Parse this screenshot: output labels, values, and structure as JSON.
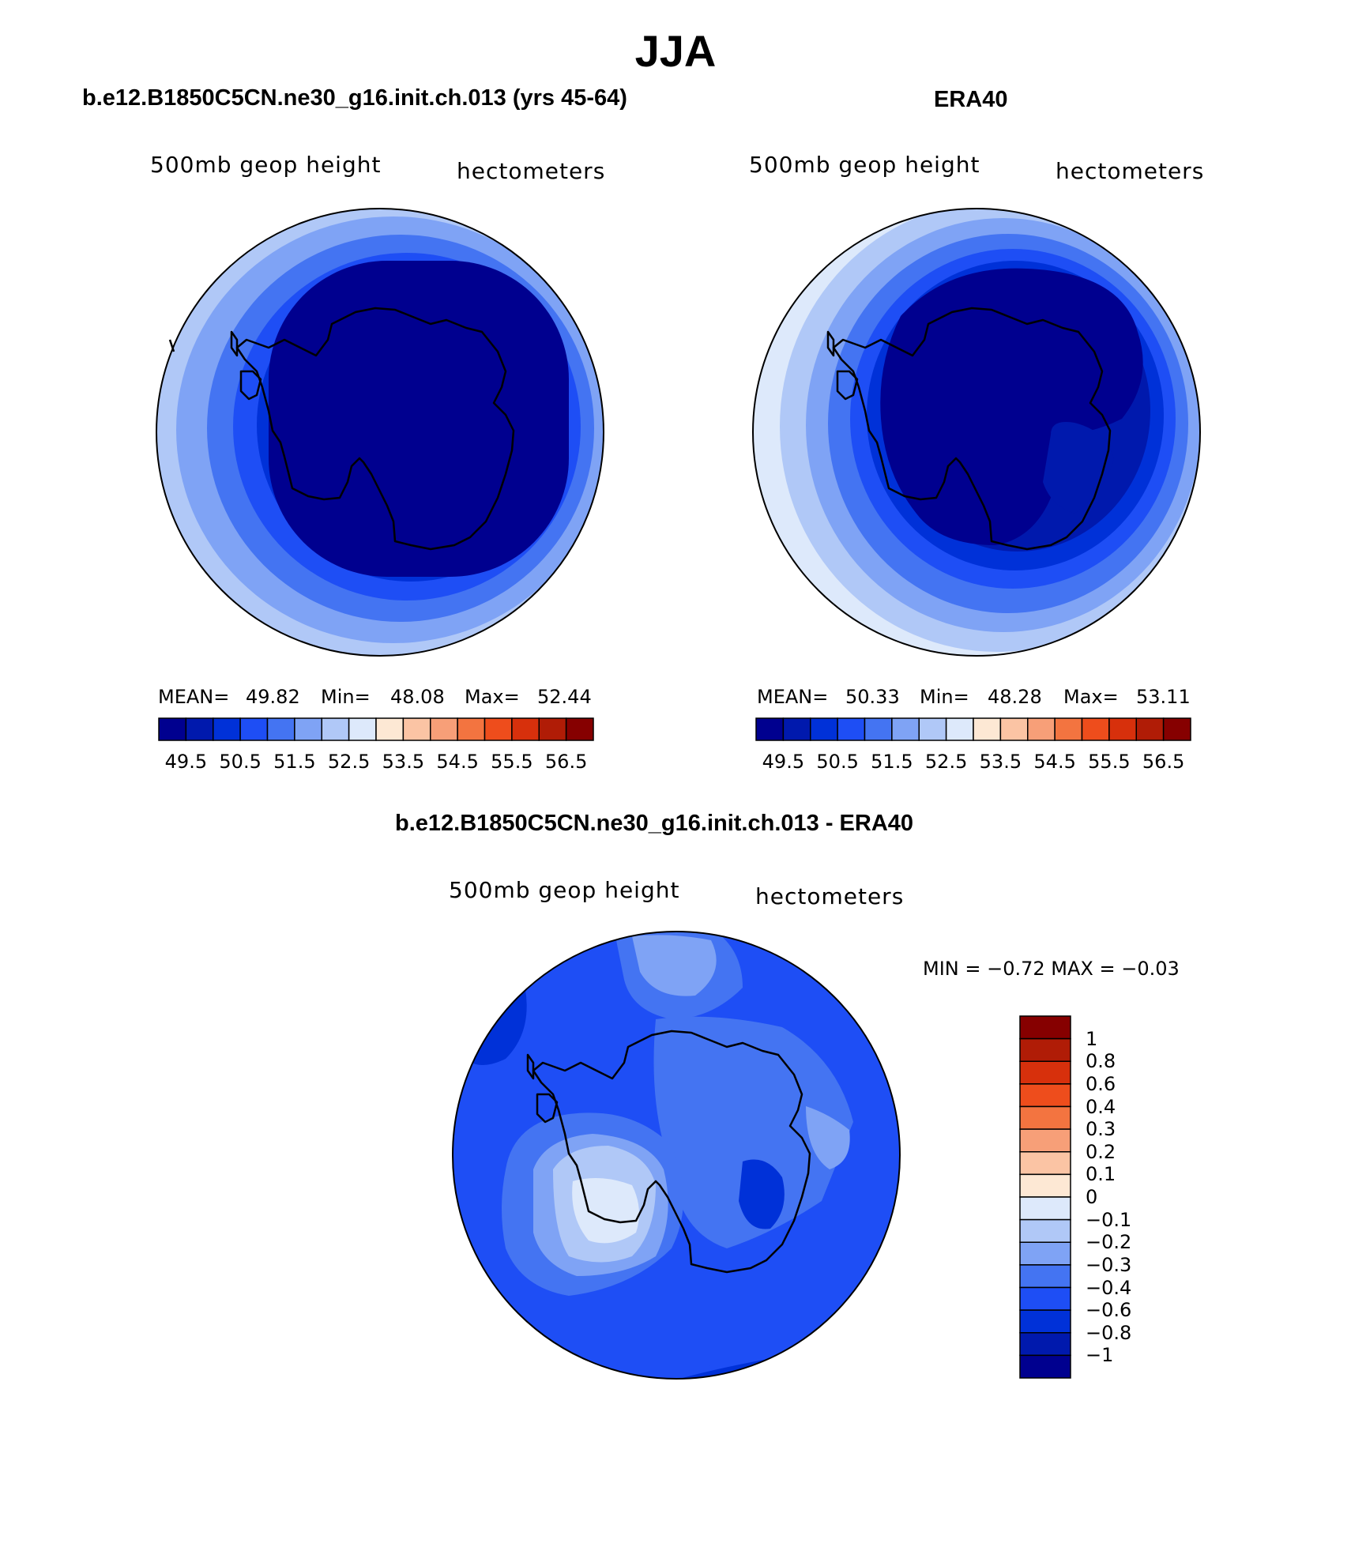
{
  "title": "JJA",
  "panels": {
    "model": {
      "title": "b.e12.B1850C5CN.ne30_g16.init.ch.013 (yrs 45-64)",
      "variable": "500mb geop height",
      "units": "hectometers",
      "stats": {
        "mean_label": "MEAN=",
        "mean": "49.82",
        "min_label": "Min=",
        "min": "48.08",
        "max_label": "Max=",
        "max": "52.44"
      }
    },
    "obs": {
      "title": "ERA40",
      "variable": "500mb geop height",
      "units": "hectometers",
      "stats": {
        "mean_label": "MEAN=",
        "mean": "50.33",
        "min_label": "Min=",
        "min": "48.28",
        "max_label": "Max=",
        "max": "53.11"
      }
    },
    "diff": {
      "title": "b.e12.B1850C5CN.ne30_g16.init.ch.013 - ERA40",
      "variable": "500mb geop height",
      "units": "hectometers",
      "minmax": "MIN =   −0.72  MAX =   −0.03"
    }
  },
  "chart_data": [
    {
      "type": "heatmap",
      "title": "b.e12.B1850C5CN.ne30_g16.init.ch.013 (yrs 45-64)",
      "field": "500mb geop height",
      "units": "hectometers",
      "projection": "south polar stereographic",
      "mean": 49.82,
      "min": 48.08,
      "max": 52.44,
      "colorbar_ticks": [
        "49.5",
        "50.5",
        "51.5",
        "52.5",
        "53.5",
        "54.5",
        "55.5",
        "56.5"
      ],
      "colors": [
        "#00008f",
        "#0019ad",
        "#0031d8",
        "#1e4ef5",
        "#4474f2",
        "#7fa3f5",
        "#b0c8f7",
        "#dde9fb",
        "#fde8d4",
        "#fbc4a4",
        "#f79f78",
        "#f37440",
        "#ee4d1c",
        "#d7300c",
        "#b01c06",
        "#860000"
      ]
    },
    {
      "type": "heatmap",
      "title": "ERA40",
      "field": "500mb geop height",
      "units": "hectometers",
      "projection": "south polar stereographic",
      "mean": 50.33,
      "min": 48.28,
      "max": 53.11,
      "colorbar_ticks": [
        "49.5",
        "50.5",
        "51.5",
        "52.5",
        "53.5",
        "54.5",
        "55.5",
        "56.5"
      ],
      "colors": [
        "#00008f",
        "#0019ad",
        "#0031d8",
        "#1e4ef5",
        "#4474f2",
        "#7fa3f5",
        "#b0c8f7",
        "#dde9fb",
        "#fde8d4",
        "#fbc4a4",
        "#f79f78",
        "#f37440",
        "#ee4d1c",
        "#d7300c",
        "#b01c06",
        "#860000"
      ]
    },
    {
      "type": "heatmap",
      "title": "b.e12.B1850C5CN.ne30_g16.init.ch.013 - ERA40",
      "field": "500mb geop height",
      "units": "hectometers",
      "projection": "south polar stereographic",
      "min": -0.72,
      "max": -0.03,
      "colorbar_ticks": [
        "1",
        "0.8",
        "0.6",
        "0.4",
        "0.3",
        "0.2",
        "0.1",
        "0",
        "−0.1",
        "−0.2",
        "−0.3",
        "−0.4",
        "−0.6",
        "−0.8",
        "−1"
      ],
      "colors": [
        "#860000",
        "#b01c06",
        "#d7300c",
        "#ee4d1c",
        "#f37440",
        "#f79f78",
        "#fbc4a4",
        "#fde8d4",
        "#dde9fb",
        "#b0c8f7",
        "#7fa3f5",
        "#4474f2",
        "#1e4ef5",
        "#0031d8",
        "#0019ad",
        "#00008f"
      ]
    }
  ]
}
